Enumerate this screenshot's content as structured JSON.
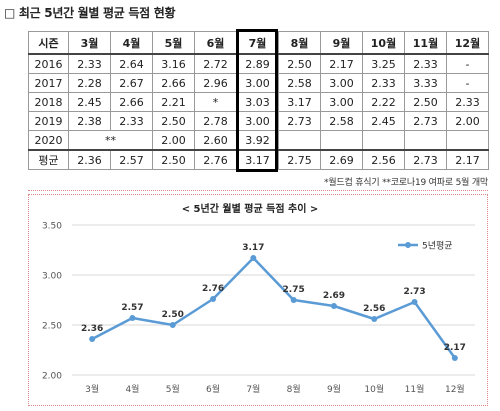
{
  "title": "□ 최근 5년간 월별 평균 득점 현황",
  "table": {
    "columns": [
      "시즌",
      "3월",
      "4월",
      "5월",
      "6월",
      "7월",
      "8월",
      "9월",
      "10월",
      "11월",
      "12월"
    ],
    "rows": [
      [
        "2016",
        "2.33",
        "2.64",
        "3.16",
        "2.72",
        "2.89",
        "2.50",
        "2.17",
        "3.25",
        "2.33",
        "-"
      ],
      [
        "2017",
        "2.28",
        "2.67",
        "2.66",
        "2.96",
        "3.00",
        "2.58",
        "3.00",
        "2.33",
        "3.33",
        "-"
      ],
      [
        "2018",
        "2.45",
        "2.66",
        "2.21",
        "*",
        "3.03",
        "3.17",
        "3.00",
        "2.22",
        "2.50",
        "2.33"
      ],
      [
        "2019",
        "2.38",
        "2.33",
        "2.50",
        "2.78",
        "3.00",
        "2.73",
        "2.58",
        "2.45",
        "2.73",
        "2.00"
      ]
    ],
    "row2020": {
      "season": "2020",
      "note": "**",
      "may": "2.00",
      "jun": "2.60",
      "jul": "3.92"
    },
    "average": [
      "평균",
      "2.36",
      "2.57",
      "2.50",
      "2.76",
      "3.17",
      "2.75",
      "2.69",
      "2.56",
      "2.73",
      "2.17"
    ]
  },
  "footnote": "*월드컵 휴식기 **코로나19 여파로 5월 개막",
  "chart_data": {
    "type": "line",
    "title": "< 5년간 월별 평균 득점 추이 >",
    "categories": [
      "3월",
      "4월",
      "5월",
      "6월",
      "7월",
      "8월",
      "9월",
      "10월",
      "11월",
      "12월"
    ],
    "series": [
      {
        "name": "5년평균",
        "values": [
          2.36,
          2.57,
          2.5,
          2.76,
          3.17,
          2.75,
          2.69,
          2.56,
          2.73,
          2.17
        ]
      }
    ],
    "data_labels": [
      "2.36",
      "2.57",
      "2.50",
      "2.76",
      "3.17",
      "2.75",
      "2.69",
      "2.56",
      "2.73",
      "2.17"
    ],
    "ylim": [
      2.0,
      3.5
    ],
    "yticks": [
      "2.00",
      "2.50",
      "3.00",
      "3.50"
    ],
    "grid": "horizontal",
    "legend": "top-right",
    "color": "#5b9bd5"
  }
}
